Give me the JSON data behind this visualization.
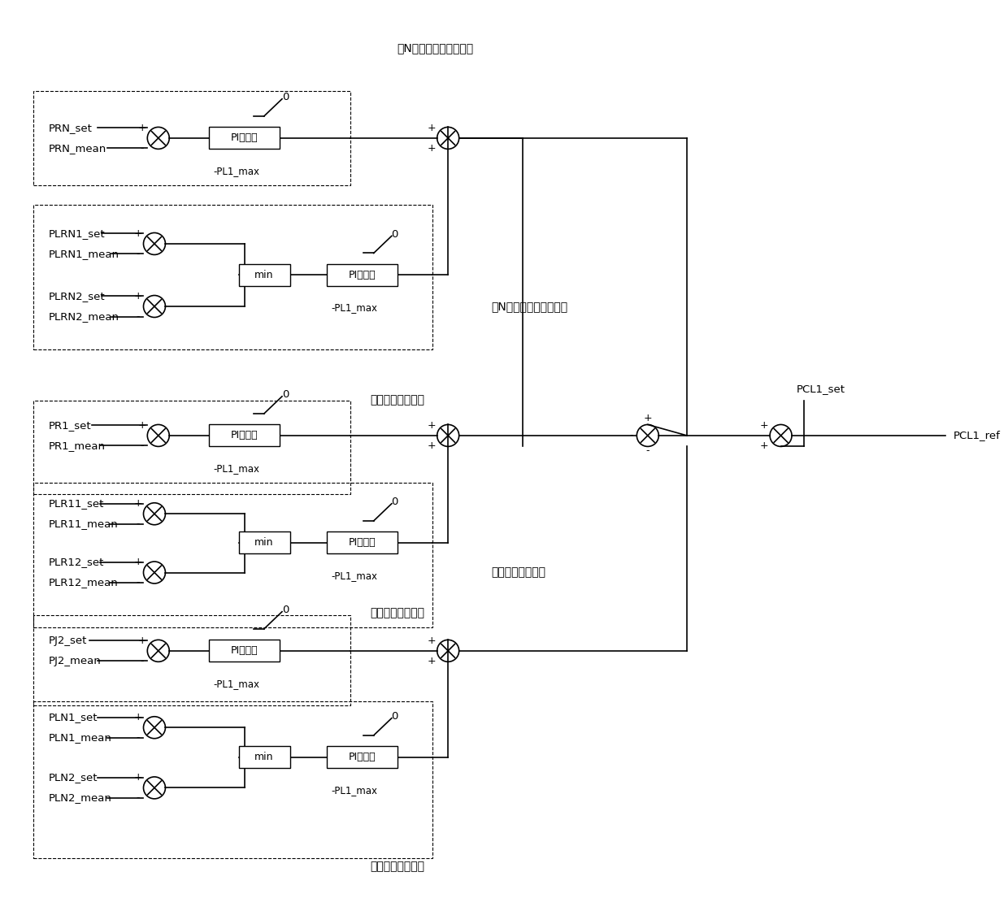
{
  "figsize": [
    12.4,
    11.21
  ],
  "dpi": 100,
  "xlim": [
    0,
    1240
  ],
  "ylim": [
    0,
    1121
  ],
  "labels": {
    "PRN_set": "PRN_set",
    "PRN_mean": "PRN_mean",
    "PLRN1_set": "PLRN1_set",
    "PLRN1_mean": "PLRN1_mean",
    "PLRN2_set": "PLRN2_set",
    "PLRN2_mean": "PLRN2_mean",
    "PR1_set": "PR1_set",
    "PR1_mean": "PR1_mean",
    "PLR11_set": "PLR11_set",
    "PLR11_mean": "PLR11_mean",
    "PLR12_set": "PLR12_set",
    "PLR12_mean": "PLR12_mean",
    "PJ2_set": "PJ2_set",
    "PJ2_mean": "PJ2_mean",
    "PLN1_set": "PLN1_set",
    "PLN1_mean": "PLN1_mean",
    "PLN2_set": "PLN2_set",
    "PLN2_mean": "PLN2_mean",
    "PI": "PI控制器",
    "min": "min",
    "sec1_label": "第N个远端断面潮流控制",
    "sec2_label": "第N个远端线路潮流控制",
    "sec3_label": "远端断面潮流控制",
    "sec4_label": "远端线路潮流控制",
    "sec5_label": "近端断面潮流控制",
    "sec6_label": "近端线路潮流控制",
    "PCL1_set": "PCL1_set",
    "PCL1_ref": "PCL1_ref",
    "PL1_max": "-PL1_max",
    "zero": "0"
  }
}
